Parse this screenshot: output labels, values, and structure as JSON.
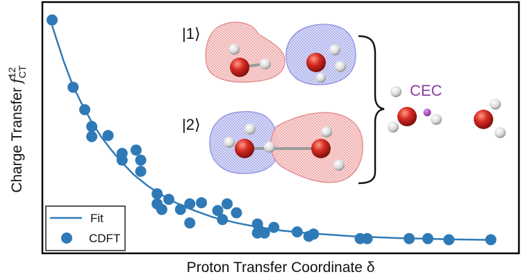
{
  "chart_data": {
    "type": "scatter",
    "title": "",
    "xlabel": "Proton Transfer Coordinate δ",
    "ylabel": {
      "text": "Charge Transfer ",
      "symbol": "f",
      "superscript": "12",
      "subscript": "CT"
    },
    "x_ticks_shown": false,
    "y_ticks_shown": false,
    "xlim": [
      0,
      1
    ],
    "ylim": [
      0,
      1
    ],
    "grid": false,
    "legend_position": "bottom-left",
    "series": [
      {
        "name": "CDFT",
        "kind": "scatter",
        "color": "#2f7ab6",
        "x": [
          0.055,
          0.1,
          0.125,
          0.14,
          0.14,
          0.175,
          0.205,
          0.205,
          0.245,
          0.235,
          0.245,
          0.28,
          0.28,
          0.29,
          0.305,
          0.33,
          0.35,
          0.35,
          0.375,
          0.41,
          0.42,
          0.43,
          0.45,
          0.5,
          0.495,
          0.495,
          0.51,
          0.53,
          0.58,
          0.605,
          0.615,
          0.715,
          0.73,
          0.82,
          0.86,
          0.905,
          0.995
        ],
        "y": [
          0.985,
          0.685,
          0.585,
          0.51,
          0.465,
          0.47,
          0.39,
          0.36,
          0.36,
          0.405,
          0.31,
          0.21,
          0.165,
          0.14,
          0.185,
          0.14,
          0.165,
          0.08,
          0.17,
          0.135,
          0.095,
          0.165,
          0.125,
          0.045,
          0.075,
          0.035,
          0.035,
          0.06,
          0.04,
          0.02,
          0.03,
          0.01,
          0.01,
          0.01,
          0.01,
          0.005,
          0.005
        ]
      },
      {
        "name": "Fit",
        "kind": "line",
        "color": "#2f7ab6",
        "x": [
          0.055,
          0.08,
          0.1,
          0.12,
          0.14,
          0.16,
          0.18,
          0.2,
          0.23,
          0.26,
          0.29,
          0.32,
          0.36,
          0.4,
          0.45,
          0.5,
          0.55,
          0.6,
          0.7,
          0.8,
          0.9,
          1.0
        ],
        "y": [
          0.96,
          0.8,
          0.69,
          0.605,
          0.53,
          0.465,
          0.41,
          0.36,
          0.295,
          0.245,
          0.205,
          0.17,
          0.135,
          0.105,
          0.08,
          0.06,
          0.045,
          0.035,
          0.02,
          0.012,
          0.007,
          0.004
        ]
      }
    ],
    "annotations": [
      {
        "id": "state1",
        "text": "|1⟩"
      },
      {
        "id": "state2",
        "text": "|2⟩"
      },
      {
        "id": "cec",
        "text": "CEC",
        "color": "#8a3c9e"
      }
    ],
    "density_colors": {
      "negative": "#f0a8a8",
      "positive": "#9a9ee6"
    }
  }
}
